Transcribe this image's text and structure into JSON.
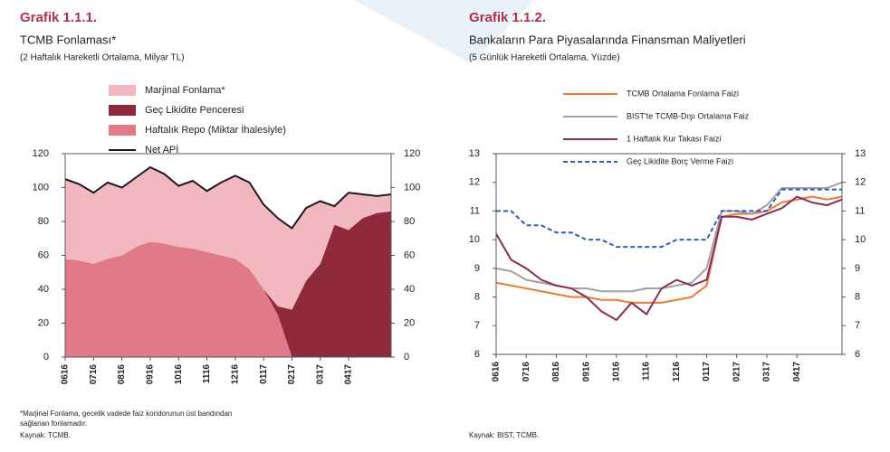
{
  "chart_data": [
    {
      "type": "area",
      "label": "Grafik 1.1.1.",
      "title": "TCMB Fonlaması*",
      "subtitle": "(2 Haftalık Hareketli Ortalama, Milyar TL)",
      "footnote": [
        "*Marjinal Fonlama, gecelik vadede faiz koridorunun üst bandından",
        "sağlanan fonlamadır."
      ],
      "source": "Kaynak: TCMB.",
      "categories": [
        "0616",
        null,
        "0716",
        null,
        "0816",
        null,
        "0916",
        null,
        "1016",
        null,
        "1116",
        null,
        "1216",
        null,
        "0117",
        null,
        "0217",
        null,
        "0317",
        null,
        "0417",
        null,
        null,
        null
      ],
      "series": [
        {
          "name": "Marjinal Fonlama*",
          "color": "#f2b8c0",
          "values": [
            47,
            45,
            42,
            45,
            40,
            41,
            44,
            41,
            36,
            40,
            36,
            43,
            49,
            51,
            50,
            52,
            48,
            43,
            37,
            11,
            22,
            14,
            10,
            10
          ]
        },
        {
          "name": "Geç Likidite Penceresi",
          "color": "#8e2a3c",
          "values": [
            0,
            0,
            0,
            0,
            0,
            0,
            0,
            0,
            0,
            0,
            0,
            0,
            0,
            0,
            0,
            5,
            28,
            45,
            55,
            78,
            75,
            82,
            85,
            86
          ]
        },
        {
          "name": "Haftalık Repo (Miktar İhalesiyle)",
          "color": "#e07a88",
          "values": [
            58,
            57,
            55,
            58,
            60,
            65,
            68,
            67,
            65,
            64,
            62,
            60,
            58,
            52,
            40,
            25,
            0,
            0,
            0,
            0,
            0,
            0,
            0,
            0
          ]
        },
        {
          "name": "Net APİ",
          "color": "#1a1a1a",
          "type": "line",
          "values": [
            105,
            102,
            97,
            103,
            100,
            106,
            112,
            108,
            101,
            104,
            98,
            103,
            107,
            103,
            90,
            82,
            76,
            88,
            92,
            89,
            97,
            96,
            95,
            96
          ]
        }
      ],
      "ylim": [
        0,
        120
      ],
      "yticks": [
        0,
        20,
        40,
        60,
        80,
        100,
        120
      ],
      "y2lim": [
        0,
        120
      ],
      "y2ticks": [
        0,
        20,
        40,
        60,
        80,
        100,
        120
      ]
    },
    {
      "type": "line",
      "label": "Grafik 1.1.2.",
      "title": "Bankaların Para Piyasalarında Finansman Maliyetleri",
      "subtitle": "(5 Günlük Hareketli Ortalama, Yüzde)",
      "source": "Kaynak: BIST, TCMB.",
      "categories": [
        "0616",
        null,
        "0716",
        null,
        "0816",
        null,
        "0916",
        null,
        "1016",
        null,
        "1116",
        null,
        "1216",
        null,
        "0117",
        null,
        "0217",
        null,
        "0317",
        null,
        "0417",
        null,
        null,
        null
      ],
      "series": [
        {
          "name": "TCMB Ortalama Fonlama Faizi",
          "color": "#f07830",
          "values": [
            8.5,
            8.4,
            8.3,
            8.2,
            8.1,
            8.0,
            8.0,
            7.9,
            7.9,
            7.8,
            7.8,
            7.8,
            7.9,
            8.0,
            8.4,
            10.8,
            10.9,
            10.9,
            11.0,
            11.3,
            11.4,
            11.5,
            11.4,
            11.5
          ]
        },
        {
          "name": "BIST'te TCMB-Dışı Ortalama Faiz",
          "color": "#a0a0a0",
          "values": [
            9.0,
            8.9,
            8.6,
            8.5,
            8.4,
            8.3,
            8.3,
            8.2,
            8.2,
            8.2,
            8.3,
            8.3,
            8.4,
            8.5,
            9.0,
            11.0,
            11.0,
            10.9,
            11.2,
            11.8,
            11.8,
            11.8,
            11.8,
            12.0
          ]
        },
        {
          "name": "1 Haftalık Kur Takası Faizi",
          "color": "#8e2a5a",
          "values": [
            10.2,
            9.3,
            9.0,
            8.6,
            8.4,
            8.3,
            8.0,
            7.5,
            7.2,
            7.8,
            7.4,
            8.3,
            8.6,
            8.4,
            8.6,
            10.8,
            10.8,
            10.7,
            10.9,
            11.1,
            11.5,
            11.3,
            11.2,
            11.4
          ]
        },
        {
          "name": "Geç Likidite Borç Verme Faizi",
          "color": "#2f5fb0",
          "dash": true,
          "values": [
            11,
            11,
            10.5,
            10.5,
            10.25,
            10.25,
            10,
            10,
            9.75,
            9.75,
            9.75,
            9.75,
            10,
            10,
            10,
            11,
            11,
            11,
            11,
            11.75,
            11.75,
            11.75,
            11.75,
            11.75
          ]
        }
      ],
      "ylim": [
        6,
        13
      ],
      "yticks": [
        6,
        7,
        8,
        9,
        10,
        11,
        12,
        13
      ],
      "y2lim": [
        6,
        13
      ],
      "y2ticks": [
        6,
        7,
        8,
        9,
        10,
        11,
        12,
        13
      ]
    }
  ]
}
